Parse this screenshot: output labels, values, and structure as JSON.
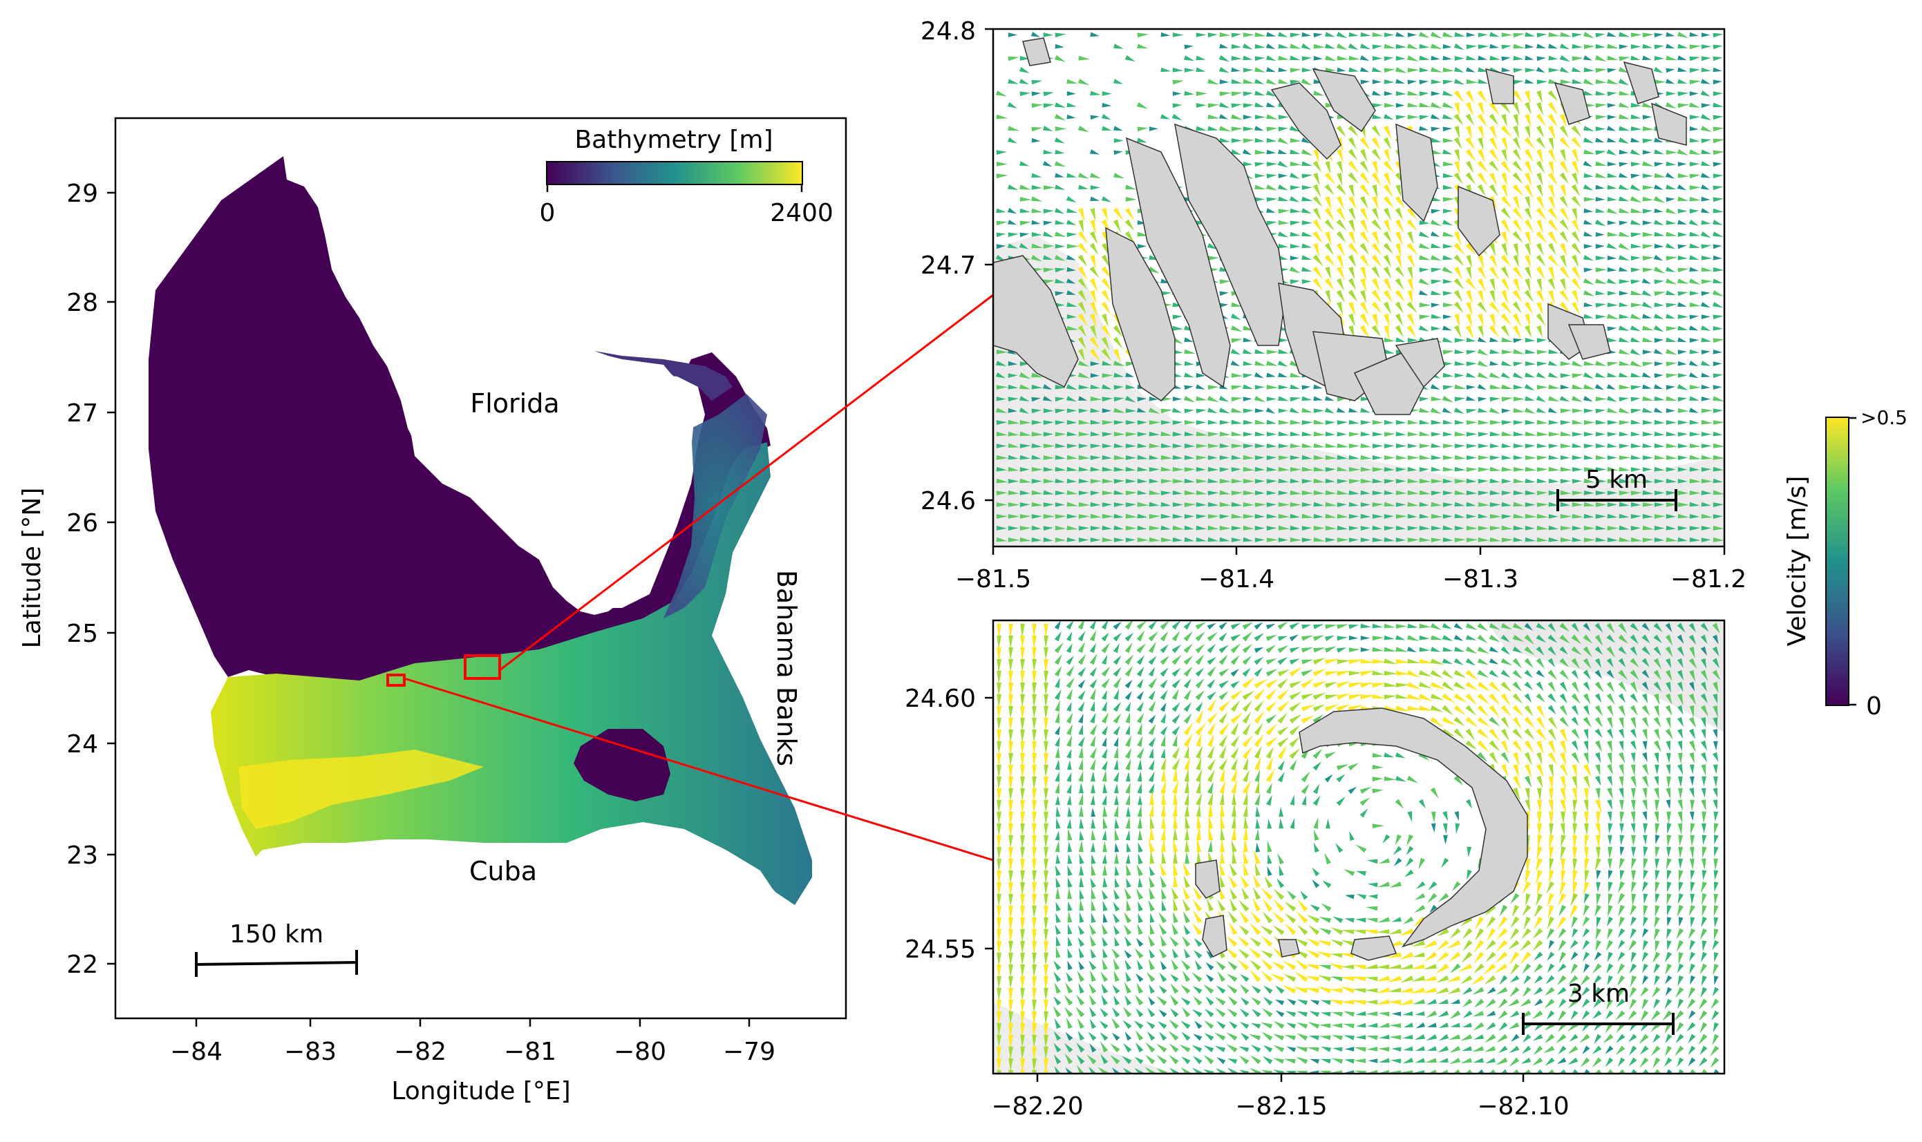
{
  "main_map": {
    "xlabel": "Longitude [°E]",
    "ylabel": "Latitude [°N]",
    "x_ticks": [
      "−84",
      "−83",
      "−82",
      "−81",
      "−80",
      "−79"
    ],
    "y_ticks": [
      "22",
      "23",
      "24",
      "25",
      "26",
      "27",
      "28",
      "29"
    ],
    "colorbar": {
      "title": "Bathymetry [m]",
      "min_label": "0",
      "max_label": "2400",
      "colormap": "viridis"
    },
    "labels": {
      "florida": "Florida",
      "cuba": "Cuba",
      "bahama_banks": "Bahama Banks"
    },
    "scalebar": "150 km",
    "inset_box_color": "#ff0000"
  },
  "inset_top": {
    "x_ticks": [
      "−81.5",
      "−81.4",
      "−81.3",
      "−81.2"
    ],
    "y_ticks": [
      "24.6",
      "24.7",
      "24.8"
    ],
    "scalebar": "5 km"
  },
  "inset_bottom": {
    "x_ticks": [
      "−82.20",
      "−82.15",
      "−82.10"
    ],
    "y_ticks": [
      "24.55",
      "24.60"
    ],
    "scalebar": "3 km"
  },
  "velocity_colorbar": {
    "title": "Velocity [m/s]",
    "max_label": ">0.5",
    "min_label": "0",
    "colormap": "viridis"
  },
  "colors": {
    "land": "#d3d3d3",
    "deep": "#440154",
    "mid": "#31688e",
    "teal": "#21918c",
    "green": "#5ec962",
    "yellow": "#fde725"
  }
}
